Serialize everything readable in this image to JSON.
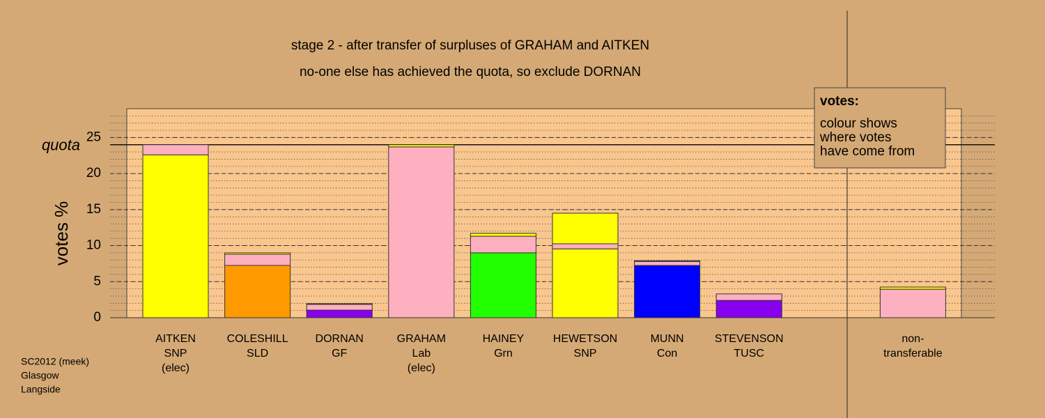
{
  "chart_data": {
    "type": "stacked_bar",
    "title": "stage 2 - after transfer of surpluses of GRAHAM and AITKEN",
    "subtitle": "no-one else has achieved the quota, so exclude DORNAN",
    "y_label": "votes %",
    "categories": [
      [
        "AITKEN",
        "SNP",
        "(elec)"
      ],
      [
        "COLESHILL",
        "SLD"
      ],
      [
        "DORNAN",
        "GF"
      ],
      [
        "GRAHAM",
        "Lab",
        "(elec)"
      ],
      [
        "HAINEY",
        "Grn"
      ],
      [
        "HEWETSON",
        "SNP"
      ],
      [
        "MUNN",
        "Con"
      ],
      [
        "STEVENSON",
        "TUSC"
      ],
      null,
      [
        "non-",
        "transferable"
      ]
    ],
    "series": [
      {
        "colors": [
          "#ffff00",
          "#ff9900",
          "#8800ee",
          "#ffb0c0",
          "#22ff00",
          "#ffff00",
          "#0000ff",
          "#8800ee",
          null,
          null
        ],
        "values": [
          22.6,
          7.25,
          1.05,
          23.7,
          9.0,
          9.55,
          7.25,
          2.4,
          null,
          null
        ]
      },
      {
        "color": "#ffb0c0",
        "values": [
          1.4,
          1.55,
          0.8,
          null,
          2.3,
          0.7,
          0.55,
          0.9,
          null,
          3.95
        ]
      },
      {
        "color": "#ffff00",
        "values": [
          null,
          0.2,
          0.1,
          0.3,
          0.4,
          4.25,
          0.1,
          null,
          null,
          0.3
        ]
      }
    ],
    "ylim": [
      0,
      29
    ],
    "yticks": [
      0,
      5,
      10,
      15,
      20,
      25
    ],
    "minor_grid_step": 1,
    "quota": {
      "label": "quota",
      "value": 24.0
    },
    "legend_box": {
      "title": "votes:",
      "lines": [
        "colour shows",
        "where votes",
        "have come from"
      ]
    },
    "footnote": [
      "SC2012 (meek)",
      "Glasgow",
      "Langside"
    ]
  }
}
